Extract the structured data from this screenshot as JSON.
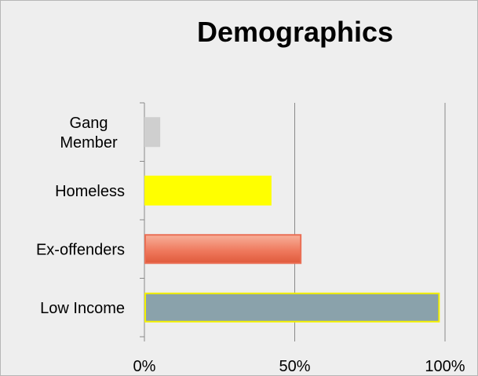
{
  "chart_data": {
    "type": "bar",
    "orientation": "horizontal",
    "title": "Demographics",
    "categories": [
      "Gang Member",
      "Homeless",
      "Ex-offenders",
      "Low Income"
    ],
    "values": [
      5,
      42,
      52,
      98
    ],
    "xlim": [
      0,
      100
    ],
    "x_ticks": [
      "0%",
      "50%",
      "100%"
    ],
    "x_tick_values": [
      0,
      50,
      100
    ],
    "grid": "vertical",
    "legend": "none",
    "colors": [
      "#cfcfcf",
      "#ffff00",
      "#ea6f55",
      "#8aa2ab"
    ],
    "bar_borders": [
      "#cfcfcf",
      "#ffff00",
      "#ea6f55",
      "#f3f000"
    ]
  }
}
